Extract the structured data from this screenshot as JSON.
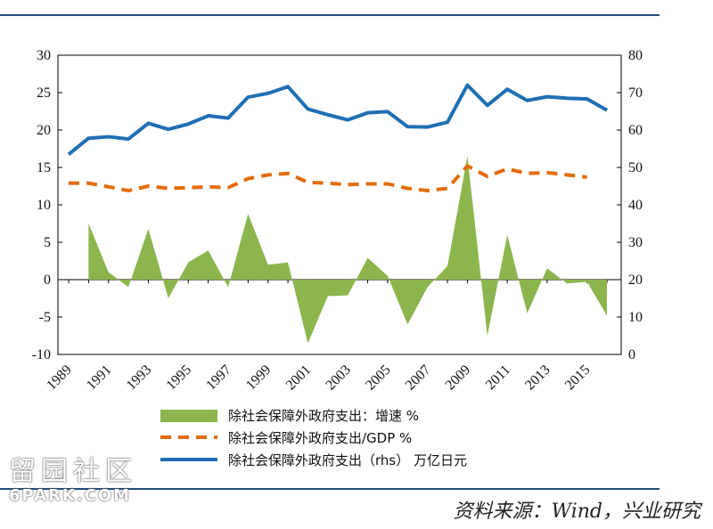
{
  "chart_data": {
    "type": "line",
    "x": [
      1989,
      1990,
      1991,
      1992,
      1993,
      1994,
      1995,
      1996,
      1997,
      1998,
      1999,
      2000,
      2001,
      2002,
      2003,
      2004,
      2005,
      2006,
      2007,
      2008,
      2009,
      2010,
      2011,
      2012,
      2013,
      2014,
      2015,
      2016
    ],
    "x_tick_labels": [
      "1989",
      "1991",
      "1993",
      "1995",
      "1997",
      "1999",
      "2001",
      "2003",
      "2005",
      "2007",
      "2009",
      "2011",
      "2013",
      "2015"
    ],
    "left_axis": {
      "ylim": [
        -10,
        30
      ],
      "ticks": [
        "30",
        "25",
        "20",
        "15",
        "10",
        "5",
        "0",
        "-5",
        "-10"
      ]
    },
    "right_axis": {
      "ylim": [
        0,
        80
      ],
      "ticks": [
        "80",
        "70",
        "60",
        "50",
        "40",
        "30",
        "20",
        "10",
        "0"
      ]
    },
    "grid": false,
    "legend_position": "bottom",
    "series": [
      {
        "name": "除社会保障外政府支出：增速 %",
        "type": "area",
        "axis": "left",
        "color": "#8cb54e",
        "values": [
          null,
          7.5,
          1.0,
          -1.0,
          6.8,
          -2.5,
          2.3,
          3.9,
          -1.0,
          8.8,
          2.0,
          2.3,
          -8.5,
          -2.2,
          -2.1,
          2.9,
          0.5,
          -6.0,
          -1.0,
          1.8,
          16.5,
          -7.5,
          6.0,
          -4.5,
          1.5,
          -0.5,
          -0.3,
          -4.8
        ]
      },
      {
        "name": "除社会保障外政府支出/GDP %",
        "type": "line",
        "axis": "left",
        "style": "dashed",
        "color": "#e36c0a",
        "values": [
          12.9,
          12.9,
          12.4,
          11.9,
          12.5,
          12.2,
          12.3,
          12.4,
          12.3,
          13.5,
          14.0,
          14.2,
          13.0,
          12.9,
          12.7,
          12.8,
          12.8,
          12.2,
          11.9,
          12.2,
          15.2,
          13.8,
          14.8,
          14.2,
          14.3,
          14.0,
          13.7,
          null
        ]
      },
      {
        "name": "除社会保障外政府支出（rhs） 万亿日元",
        "type": "line",
        "axis": "right",
        "color": "#1f6fb4",
        "values": [
          53.5,
          57.8,
          58.2,
          57.6,
          61.8,
          60.2,
          61.6,
          63.8,
          63.2,
          68.8,
          69.8,
          71.6,
          65.6,
          64.1,
          62.7,
          64.6,
          64.9,
          60.9,
          60.8,
          62.1,
          72.0,
          66.6,
          70.9,
          67.9,
          68.9,
          68.5,
          68.3,
          65.3
        ]
      }
    ]
  },
  "source_text": "资料来源：Wind，兴业研究",
  "watermark": {
    "cn": "留园社区",
    "en": "6PARK.COM"
  }
}
